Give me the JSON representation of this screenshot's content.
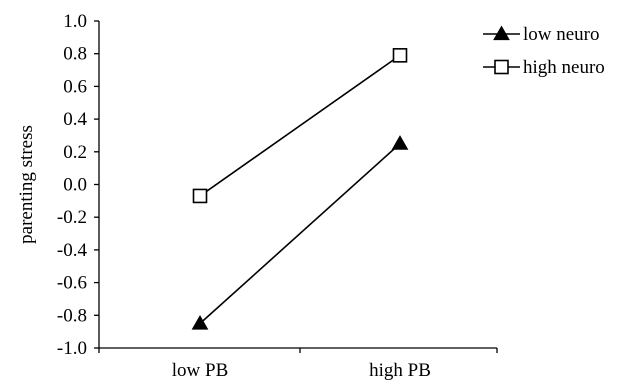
{
  "chart_data": {
    "type": "line",
    "title": "",
    "xlabel": "",
    "ylabel": "parenting stress",
    "categories": [
      "low PB",
      "high PB"
    ],
    "ylim": [
      -1.0,
      1.0
    ],
    "y_ticks": [
      "1.0",
      "0.8",
      "0.6",
      "0.4",
      "0.2",
      "0.0",
      "-0.2",
      "-0.4",
      "-0.6",
      "-0.8",
      "-1.0"
    ],
    "grid": false,
    "legend_position": "top-right",
    "series": [
      {
        "name": "low neuro",
        "marker": "filled-triangle",
        "color": "#000000",
        "values": [
          -0.85,
          0.25
        ]
      },
      {
        "name": "high neuro",
        "marker": "open-square",
        "color": "#000000",
        "values": [
          -0.07,
          0.79
        ]
      }
    ]
  }
}
